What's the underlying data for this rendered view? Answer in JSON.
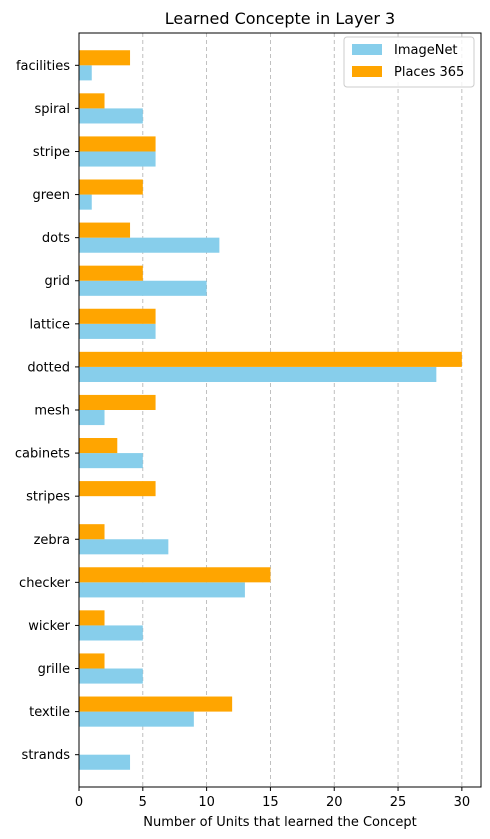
{
  "chart_data": {
    "type": "bar",
    "orientation": "horizontal",
    "title": "Learned Concepte in Layer 3",
    "xlabel": "Number of Units that learned the Concept",
    "ylabel": "",
    "xlim": [
      0,
      31.5
    ],
    "xticks": [
      0,
      5,
      10,
      15,
      20,
      25,
      30
    ],
    "grid": "vertical-dashed",
    "legend_position": "top-right",
    "categories": [
      "facilities",
      "spiral",
      "stripe",
      "green",
      "dots",
      "grid",
      "lattice",
      "dotted",
      "mesh",
      "cabinets",
      "stripes",
      "zebra",
      "checker",
      "wicker",
      "grille",
      "textile",
      "strands"
    ],
    "series": [
      {
        "name": "ImageNet",
        "color": "#87ceeb",
        "values": [
          1,
          5,
          6,
          1,
          11,
          10,
          6,
          28,
          2,
          5,
          0,
          7,
          13,
          5,
          5,
          9,
          4
        ]
      },
      {
        "name": "Places 365",
        "color": "#ffa500",
        "values": [
          4,
          2,
          6,
          5,
          4,
          5,
          6,
          30,
          6,
          3,
          6,
          2,
          15,
          2,
          2,
          12,
          0
        ]
      }
    ]
  }
}
